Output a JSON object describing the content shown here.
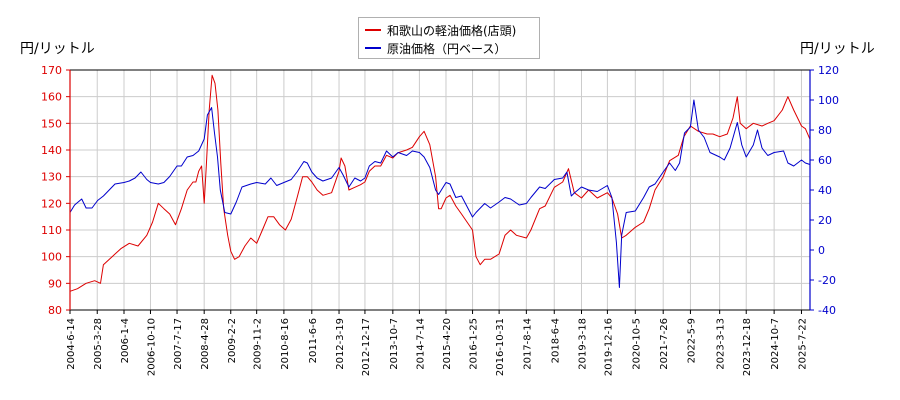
{
  "chart_data": {
    "type": "line",
    "ylabel_left": "円/リットル",
    "ylabel_right": "円/リットル",
    "ylim_left": [
      80,
      170
    ],
    "ylim_right": [
      -40,
      120
    ],
    "yticks_left": [
      "80",
      "90",
      "100",
      "110",
      "120",
      "130",
      "140",
      "150",
      "160",
      "170"
    ],
    "yticks_right": [
      "-40",
      "-20",
      "0",
      "20",
      "40",
      "60",
      "80",
      "100",
      "120"
    ],
    "xticks": [
      "2004-6-14",
      "2005-3-28",
      "2006-1-4",
      "2006-10-10",
      "2007-7-17",
      "2008-4-28",
      "2009-2-2",
      "2009-11-2",
      "2010-8-16",
      "2011-6-6",
      "2012-3-19",
      "2012-12-17",
      "2013-10-7",
      "2014-7-14",
      "2015-4-20",
      "2016-1-25",
      "2016-10-31",
      "2017-8-14",
      "2018-6-4",
      "2019-3-18",
      "2019-12-16",
      "2020-10-5",
      "2021-7-26",
      "2022-5-9",
      "2023-3-13",
      "2023-12-18",
      "2024-10-7",
      "2025-7-22"
    ],
    "x_range": [
      "2004-6-14",
      "2025-10-20"
    ],
    "grid": true,
    "legend_position": "top-center",
    "series": [
      {
        "name": "和歌山の軽油価格(店頭)",
        "axis": "left",
        "color": "#dd0000",
        "points": [
          [
            "2004-6-14",
            87
          ],
          [
            "2004-9-1",
            88
          ],
          [
            "2004-12-1",
            90
          ],
          [
            "2005-3-1",
            91
          ],
          [
            "2005-5-1",
            90
          ],
          [
            "2005-6-1",
            97
          ],
          [
            "2005-9-1",
            100
          ],
          [
            "2005-12-1",
            103
          ],
          [
            "2006-3-1",
            105
          ],
          [
            "2006-6-1",
            104
          ],
          [
            "2006-9-1",
            108
          ],
          [
            "2006-11-1",
            113
          ],
          [
            "2007-1-1",
            120
          ],
          [
            "2007-3-1",
            118
          ],
          [
            "2007-5-1",
            116
          ],
          [
            "2007-7-1",
            112
          ],
          [
            "2007-9-1",
            118
          ],
          [
            "2007-11-1",
            125
          ],
          [
            "2008-1-1",
            128
          ],
          [
            "2008-2-1",
            128
          ],
          [
            "2008-3-1",
            132
          ],
          [
            "2008-4-1",
            134
          ],
          [
            "2008-4-28",
            120
          ],
          [
            "2008-5-20",
            134
          ],
          [
            "2008-6-20",
            155
          ],
          [
            "2008-7-20",
            168
          ],
          [
            "2008-8-20",
            165
          ],
          [
            "2008-9-20",
            155
          ],
          [
            "2008-10-20",
            135
          ],
          [
            "2008-11-20",
            118
          ],
          [
            "2009-1-1",
            108
          ],
          [
            "2009-2-2",
            102
          ],
          [
            "2009-3-15",
            99
          ],
          [
            "2009-5-1",
            100
          ],
          [
            "2009-7-1",
            104
          ],
          [
            "2009-9-1",
            107
          ],
          [
            "2009-11-2",
            105
          ],
          [
            "2010-1-1",
            110
          ],
          [
            "2010-3-1",
            115
          ],
          [
            "2010-5-1",
            115
          ],
          [
            "2010-7-1",
            112
          ],
          [
            "2010-9-1",
            110
          ],
          [
            "2010-11-1",
            114
          ],
          [
            "2011-1-1",
            122
          ],
          [
            "2011-3-1",
            130
          ],
          [
            "2011-4-20",
            130
          ],
          [
            "2011-6-6",
            128
          ],
          [
            "2011-8-1",
            125
          ],
          [
            "2011-10-1",
            123
          ],
          [
            "2012-1-1",
            124
          ],
          [
            "2012-3-19",
            132
          ],
          [
            "2012-4-10",
            137
          ],
          [
            "2012-5-20",
            134
          ],
          [
            "2012-7-1",
            125
          ],
          [
            "2012-9-1",
            126
          ],
          [
            "2012-11-1",
            127
          ],
          [
            "2012-12-17",
            128
          ],
          [
            "2013-2-1",
            132
          ],
          [
            "2013-4-1",
            134
          ],
          [
            "2013-6-1",
            134
          ],
          [
            "2013-8-1",
            138
          ],
          [
            "2013-10-7",
            137
          ],
          [
            "2013-12-1",
            139
          ],
          [
            "2014-3-1",
            140
          ],
          [
            "2014-5-1",
            141
          ],
          [
            "2014-7-14",
            145
          ],
          [
            "2014-9-1",
            147
          ],
          [
            "2014-11-1",
            142
          ],
          [
            "2015-1-1",
            130
          ],
          [
            "2015-2-1",
            118
          ],
          [
            "2015-3-1",
            118
          ],
          [
            "2015-4-20",
            122
          ],
          [
            "2015-6-1",
            123
          ],
          [
            "2015-8-1",
            119
          ],
          [
            "2015-10-1",
            116
          ],
          [
            "2016-1-25",
            110
          ],
          [
            "2016-3-1",
            100
          ],
          [
            "2016-4-15",
            97
          ],
          [
            "2016-6-1",
            99
          ],
          [
            "2016-8-1",
            99
          ],
          [
            "2016-10-31",
            101
          ],
          [
            "2017-1-1",
            108
          ],
          [
            "2017-3-1",
            110
          ],
          [
            "2017-5-1",
            108
          ],
          [
            "2017-8-14",
            107
          ],
          [
            "2017-10-1",
            110
          ],
          [
            "2018-1-1",
            118
          ],
          [
            "2018-3-1",
            119
          ],
          [
            "2018-6-4",
            126
          ],
          [
            "2018-9-1",
            128
          ],
          [
            "2018-11-1",
            133
          ],
          [
            "2019-1-1",
            124
          ],
          [
            "2019-3-18",
            122
          ],
          [
            "2019-6-1",
            125
          ],
          [
            "2019-9-1",
            122
          ],
          [
            "2019-12-16",
            124
          ],
          [
            "2020-2-1",
            122
          ],
          [
            "2020-4-1",
            116
          ],
          [
            "2020-5-15",
            107
          ],
          [
            "2020-7-1",
            108
          ],
          [
            "2020-10-5",
            111
          ],
          [
            "2021-1-1",
            113
          ],
          [
            "2021-3-1",
            118
          ],
          [
            "2021-5-1",
            125
          ],
          [
            "2021-7-26",
            130
          ],
          [
            "2021-10-1",
            136
          ],
          [
            "2022-1-1",
            138
          ],
          [
            "2022-3-1",
            145
          ],
          [
            "2022-5-9",
            149
          ],
          [
            "2022-8-1",
            147
          ],
          [
            "2022-11-1",
            146
          ],
          [
            "2023-1-1",
            146
          ],
          [
            "2023-3-13",
            145
          ],
          [
            "2023-6-1",
            146
          ],
          [
            "2023-8-1",
            152
          ],
          [
            "2023-9-15",
            160
          ],
          [
            "2023-10-15",
            150
          ],
          [
            "2023-12-18",
            148
          ],
          [
            "2024-3-1",
            150
          ],
          [
            "2024-6-1",
            149
          ],
          [
            "2024-8-1",
            150
          ],
          [
            "2024-10-7",
            151
          ],
          [
            "2025-1-1",
            155
          ],
          [
            "2025-3-1",
            160
          ],
          [
            "2025-5-1",
            155
          ],
          [
            "2025-7-22",
            149
          ],
          [
            "2025-9-1",
            148
          ],
          [
            "2025-10-20",
            144
          ]
        ]
      },
      {
        "name": "原油価格（円ベース）",
        "axis": "right",
        "color": "#0000cc",
        "points": [
          [
            "2004-6-14",
            25
          ],
          [
            "2004-8-1",
            30
          ],
          [
            "2004-10-15",
            34
          ],
          [
            "2004-12-1",
            28
          ],
          [
            "2005-2-1",
            28
          ],
          [
            "2005-4-1",
            33
          ],
          [
            "2005-6-1",
            36
          ],
          [
            "2005-8-1",
            40
          ],
          [
            "2005-10-1",
            44
          ],
          [
            "2006-1-4",
            45
          ],
          [
            "2006-3-1",
            46
          ],
          [
            "2006-5-1",
            48
          ],
          [
            "2006-7-1",
            52
          ],
          [
            "2006-9-1",
            47
          ],
          [
            "2006-10-10",
            45
          ],
          [
            "2007-1-1",
            44
          ],
          [
            "2007-3-1",
            45
          ],
          [
            "2007-5-1",
            49
          ],
          [
            "2007-7-17",
            56
          ],
          [
            "2007-9-1",
            56
          ],
          [
            "2007-11-1",
            62
          ],
          [
            "2008-1-1",
            63
          ],
          [
            "2008-3-1",
            66
          ],
          [
            "2008-4-28",
            74
          ],
          [
            "2008-6-1",
            90
          ],
          [
            "2008-7-15",
            95
          ],
          [
            "2008-8-15",
            78
          ],
          [
            "2008-9-15",
            62
          ],
          [
            "2008-10-15",
            40
          ],
          [
            "2008-12-1",
            25
          ],
          [
            "2009-2-2",
            24
          ],
          [
            "2009-4-1",
            32
          ],
          [
            "2009-6-1",
            42
          ],
          [
            "2009-9-1",
            44
          ],
          [
            "2009-11-2",
            45
          ],
          [
            "2010-2-1",
            44
          ],
          [
            "2010-4-1",
            48
          ],
          [
            "2010-6-1",
            43
          ],
          [
            "2010-8-16",
            45
          ],
          [
            "2010-11-1",
            47
          ],
          [
            "2011-1-1",
            52
          ],
          [
            "2011-3-15",
            59
          ],
          [
            "2011-4-20",
            58
          ],
          [
            "2011-6-6",
            52
          ],
          [
            "2011-8-1",
            48
          ],
          [
            "2011-10-1",
            46
          ],
          [
            "2012-1-1",
            48
          ],
          [
            "2012-3-19",
            55
          ],
          [
            "2012-5-1",
            50
          ],
          [
            "2012-7-1",
            42
          ],
          [
            "2012-9-1",
            48
          ],
          [
            "2012-11-1",
            46
          ],
          [
            "2012-12-17",
            48
          ],
          [
            "2013-2-1",
            56
          ],
          [
            "2013-4-1",
            59
          ],
          [
            "2013-6-1",
            58
          ],
          [
            "2013-8-1",
            66
          ],
          [
            "2013-10-7",
            62
          ],
          [
            "2013-12-1",
            65
          ],
          [
            "2014-3-1",
            63
          ],
          [
            "2014-5-1",
            66
          ],
          [
            "2014-7-14",
            65
          ],
          [
            "2014-9-1",
            62
          ],
          [
            "2014-11-1",
            55
          ],
          [
            "2015-1-1",
            40
          ],
          [
            "2015-2-1",
            37
          ],
          [
            "2015-4-20",
            45
          ],
          [
            "2015-6-1",
            44
          ],
          [
            "2015-8-1",
            35
          ],
          [
            "2015-10-1",
            36
          ],
          [
            "2016-1-25",
            22
          ],
          [
            "2016-3-1",
            25
          ],
          [
            "2016-6-1",
            31
          ],
          [
            "2016-8-1",
            28
          ],
          [
            "2016-10-31",
            32
          ],
          [
            "2017-1-1",
            35
          ],
          [
            "2017-3-1",
            34
          ],
          [
            "2017-6-1",
            30
          ],
          [
            "2017-8-14",
            31
          ],
          [
            "2017-10-1",
            35
          ],
          [
            "2018-1-1",
            42
          ],
          [
            "2018-3-1",
            41
          ],
          [
            "2018-6-4",
            47
          ],
          [
            "2018-9-1",
            48
          ],
          [
            "2018-10-15",
            52
          ],
          [
            "2018-12-1",
            36
          ],
          [
            "2019-1-1",
            38
          ],
          [
            "2019-3-18",
            42
          ],
          [
            "2019-6-1",
            40
          ],
          [
            "2019-9-1",
            39
          ],
          [
            "2019-12-16",
            43
          ],
          [
            "2020-2-1",
            35
          ],
          [
            "2020-3-20",
            5
          ],
          [
            "2020-4-21",
            -25
          ],
          [
            "2020-5-15",
            10
          ],
          [
            "2020-7-1",
            25
          ],
          [
            "2020-10-5",
            26
          ],
          [
            "2021-1-1",
            35
          ],
          [
            "2021-3-1",
            42
          ],
          [
            "2021-5-1",
            44
          ],
          [
            "2021-7-26",
            52
          ],
          [
            "2021-10-1",
            58
          ],
          [
            "2021-12-1",
            53
          ],
          [
            "2022-1-15",
            58
          ],
          [
            "2022-3-8",
            78
          ],
          [
            "2022-5-9",
            82
          ],
          [
            "2022-6-15",
            100
          ],
          [
            "2022-8-1",
            80
          ],
          [
            "2022-10-1",
            75
          ],
          [
            "2022-12-1",
            65
          ],
          [
            "2023-3-13",
            62
          ],
          [
            "2023-5-1",
            60
          ],
          [
            "2023-7-1",
            68
          ],
          [
            "2023-9-15",
            85
          ],
          [
            "2023-11-1",
            70
          ],
          [
            "2023-12-18",
            62
          ],
          [
            "2024-3-1",
            70
          ],
          [
            "2024-4-15",
            80
          ],
          [
            "2024-6-1",
            68
          ],
          [
            "2024-8-1",
            63
          ],
          [
            "2024-10-7",
            65
          ],
          [
            "2025-1-15",
            66
          ],
          [
            "2025-3-1",
            58
          ],
          [
            "2025-5-1",
            56
          ],
          [
            "2025-7-22",
            60
          ],
          [
            "2025-9-1",
            58
          ],
          [
            "2025-10-20",
            57
          ]
        ]
      }
    ]
  }
}
